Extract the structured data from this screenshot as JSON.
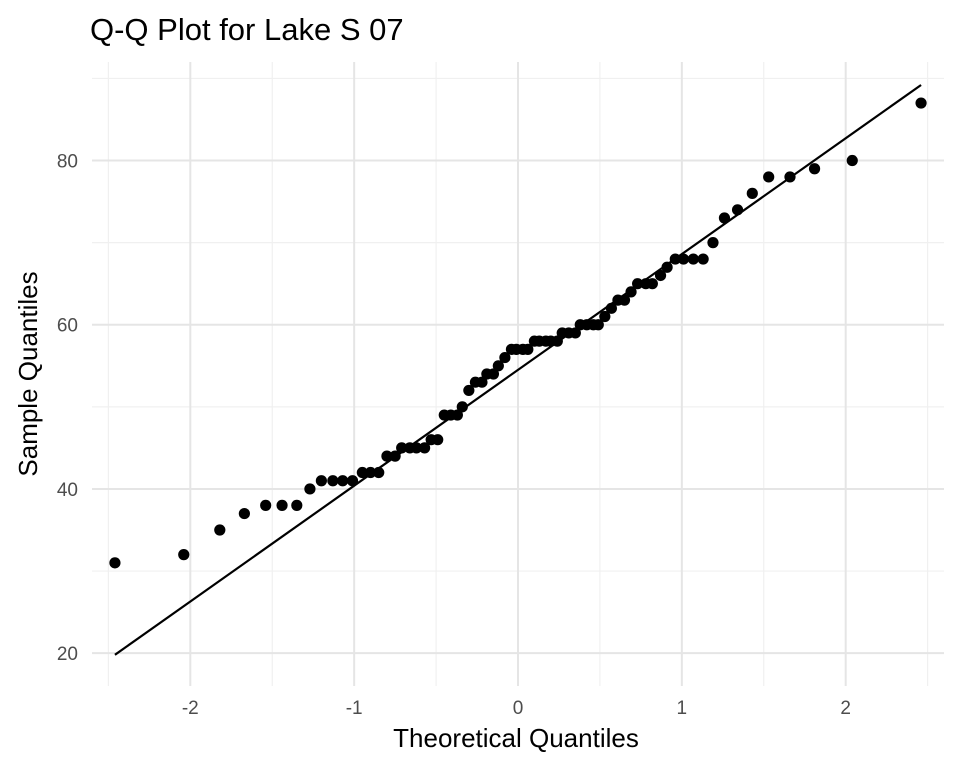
{
  "chart_data": {
    "type": "scatter",
    "title": "Q-Q Plot for Lake S 07",
    "xlabel": "Theoretical Quantiles",
    "ylabel": "Sample Quantiles",
    "xlim": [
      -2.6,
      2.6
    ],
    "ylim": [
      16,
      92
    ],
    "x_ticks": [
      -2,
      -1,
      0,
      1,
      2
    ],
    "x_tick_labels": [
      "-2",
      "-1",
      "0",
      "1",
      "2"
    ],
    "y_ticks": [
      20,
      40,
      60,
      80
    ],
    "y_tick_labels": [
      "20",
      "40",
      "60",
      "80"
    ],
    "grid": true,
    "legend": "none",
    "point_color": "#000000",
    "line_color": "#000000",
    "reference_line": {
      "x": [
        -2.46,
        2.46
      ],
      "y": [
        19.8,
        89.2
      ]
    },
    "points": [
      {
        "x": -2.46,
        "y": 31
      },
      {
        "x": -2.04,
        "y": 32
      },
      {
        "x": -1.82,
        "y": 35
      },
      {
        "x": -1.67,
        "y": 37
      },
      {
        "x": -1.54,
        "y": 38
      },
      {
        "x": -1.44,
        "y": 38
      },
      {
        "x": -1.35,
        "y": 38
      },
      {
        "x": -1.27,
        "y": 40
      },
      {
        "x": -1.2,
        "y": 41
      },
      {
        "x": -1.13,
        "y": 41
      },
      {
        "x": -1.07,
        "y": 41
      },
      {
        "x": -1.01,
        "y": 41
      },
      {
        "x": -0.95,
        "y": 42
      },
      {
        "x": -0.9,
        "y": 42
      },
      {
        "x": -0.85,
        "y": 42
      },
      {
        "x": -0.8,
        "y": 44
      },
      {
        "x": -0.75,
        "y": 44
      },
      {
        "x": -0.71,
        "y": 45
      },
      {
        "x": -0.66,
        "y": 45
      },
      {
        "x": -0.62,
        "y": 45
      },
      {
        "x": -0.57,
        "y": 45
      },
      {
        "x": -0.53,
        "y": 46
      },
      {
        "x": -0.49,
        "y": 46
      },
      {
        "x": -0.45,
        "y": 49
      },
      {
        "x": -0.41,
        "y": 49
      },
      {
        "x": -0.37,
        "y": 49
      },
      {
        "x": -0.34,
        "y": 50
      },
      {
        "x": -0.3,
        "y": 52
      },
      {
        "x": -0.26,
        "y": 53
      },
      {
        "x": -0.22,
        "y": 53
      },
      {
        "x": -0.19,
        "y": 54
      },
      {
        "x": -0.15,
        "y": 54
      },
      {
        "x": -0.12,
        "y": 55
      },
      {
        "x": -0.08,
        "y": 56
      },
      {
        "x": -0.04,
        "y": 57
      },
      {
        "x": -0.01,
        "y": 57
      },
      {
        "x": 0.03,
        "y": 57
      },
      {
        "x": 0.06,
        "y": 57
      },
      {
        "x": 0.1,
        "y": 58
      },
      {
        "x": 0.13,
        "y": 58
      },
      {
        "x": 0.17,
        "y": 58
      },
      {
        "x": 0.2,
        "y": 58
      },
      {
        "x": 0.24,
        "y": 58
      },
      {
        "x": 0.27,
        "y": 59
      },
      {
        "x": 0.31,
        "y": 59
      },
      {
        "x": 0.35,
        "y": 59
      },
      {
        "x": 0.38,
        "y": 60
      },
      {
        "x": 0.42,
        "y": 60
      },
      {
        "x": 0.46,
        "y": 60
      },
      {
        "x": 0.49,
        "y": 60
      },
      {
        "x": 0.53,
        "y": 61
      },
      {
        "x": 0.57,
        "y": 62
      },
      {
        "x": 0.61,
        "y": 63
      },
      {
        "x": 0.65,
        "y": 63
      },
      {
        "x": 0.69,
        "y": 64
      },
      {
        "x": 0.73,
        "y": 65
      },
      {
        "x": 0.78,
        "y": 65
      },
      {
        "x": 0.82,
        "y": 65
      },
      {
        "x": 0.87,
        "y": 66
      },
      {
        "x": 0.91,
        "y": 67
      },
      {
        "x": 0.96,
        "y": 68
      },
      {
        "x": 1.01,
        "y": 68
      },
      {
        "x": 1.07,
        "y": 68
      },
      {
        "x": 1.13,
        "y": 68
      },
      {
        "x": 1.19,
        "y": 70
      },
      {
        "x": 1.26,
        "y": 73
      },
      {
        "x": 1.34,
        "y": 74
      },
      {
        "x": 1.43,
        "y": 76
      },
      {
        "x": 1.53,
        "y": 78
      },
      {
        "x": 1.66,
        "y": 78
      },
      {
        "x": 1.81,
        "y": 79
      },
      {
        "x": 2.04,
        "y": 80
      },
      {
        "x": 2.46,
        "y": 87
      }
    ]
  }
}
